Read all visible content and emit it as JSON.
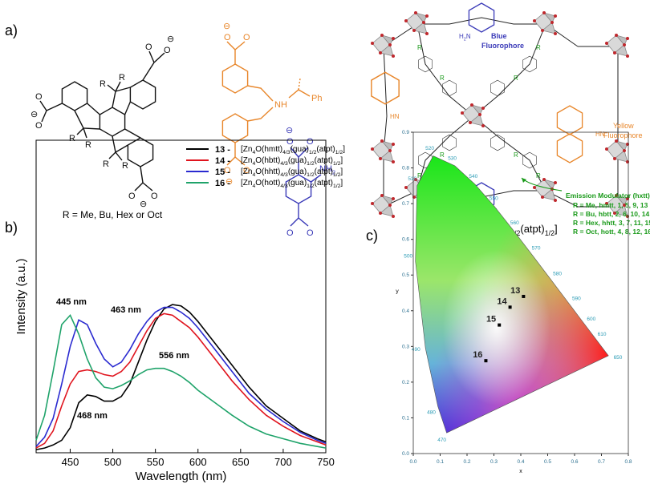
{
  "panels": {
    "a": "a)",
    "b": "b)",
    "c": "c)"
  },
  "atoms": {
    "R": "R",
    "O": "O",
    "minus": "⊖",
    "NH": "NH",
    "Ph": "Ph",
    "NH2": [
      "NH",
      "2"
    ],
    "H2N": [
      "H",
      "2",
      "N"
    ],
    "HN": "HN",
    "N": "N",
    "H": "H"
  },
  "structure_caption": "R = Me, Bu, Hex or Oct",
  "framework": {
    "blue_label": [
      "Blue",
      "Fluorophore"
    ],
    "yellow_label": [
      "Yellow",
      "Fluorophore"
    ],
    "modulator_title": "Emission Modulator (hxtt)",
    "modulator_lines": [
      "R = Me, hmtt, 1, 5, 9, 13",
      "R = Bu, hbtt, 2, 6, 10, 14",
      "R = Hex, hhtt, 3, 7, 11, 15",
      "R = Oct, hott, 4, 8, 12, 16"
    ],
    "formula": [
      "[Zn",
      "4",
      "O(hxtt)",
      "4/3",
      "(gua)",
      "1/2",
      "(atpt)",
      "1/2",
      "]"
    ]
  },
  "chart_data": [
    {
      "type": "line",
      "x_label": "Wavelength (nm)",
      "y_label": "Intensity (a.u.)",
      "x": [
        410,
        420,
        430,
        440,
        450,
        460,
        470,
        480,
        490,
        500,
        510,
        520,
        530,
        540,
        550,
        560,
        570,
        580,
        590,
        600,
        620,
        640,
        660,
        680,
        700,
        720,
        740,
        750
      ],
      "xlim": [
        410,
        750
      ],
      "xticks": [
        450,
        500,
        550,
        600,
        650,
        700,
        750
      ],
      "ylim": [
        0,
        100
      ],
      "series": [
        {
          "name": "13 -",
          "color": "#000000",
          "formula": [
            "[Zn",
            "4",
            "O(hmtt)",
            "4/3",
            "(gua)",
            "1/2",
            "(atpt)",
            "1/2",
            "]"
          ],
          "values": [
            1,
            1.5,
            2.5,
            4,
            8,
            16,
            18.5,
            18,
            16.5,
            16.5,
            18,
            22,
            29,
            36,
            42,
            46,
            47.4,
            47,
            45,
            42,
            35,
            28,
            21,
            15,
            11,
            7,
            4.5,
            3.5
          ]
        },
        {
          "name": "14 -",
          "color": "#e0141e",
          "formula": [
            "[Zn",
            "4",
            "O(hbtt)",
            "4/3",
            "(gua)",
            "1/2",
            "(atpt)",
            "1/2",
            "]"
          ],
          "values": [
            1.5,
            3,
            7,
            15,
            22,
            26,
            26.5,
            26,
            25,
            24.5,
            26,
            29,
            34,
            39,
            43,
            44.5,
            44,
            42,
            40,
            37,
            30,
            23,
            17,
            12,
            8.5,
            5.5,
            3.5,
            2.5
          ]
        },
        {
          "name": "15 -",
          "color": "#2a2ad0",
          "formula": [
            "[Zn",
            "4",
            "O(hhtt)",
            "4/3",
            "(gua)",
            "1/2",
            "(atpt)",
            "1/2",
            "]"
          ],
          "values": [
            2,
            5,
            11,
            22,
            34,
            42.5,
            41,
            35,
            30,
            27.5,
            29,
            33,
            38,
            42,
            45,
            46.5,
            46.5,
            45,
            43,
            40,
            33,
            26,
            19,
            14,
            10,
            6.5,
            4,
            3
          ]
        },
        {
          "name": "16 -",
          "color": "#1fa36a",
          "formula": [
            "[Zn",
            "4",
            "O(hott)",
            "4/3",
            "(gua)",
            "1/2",
            "(atpt)",
            "1/2",
            "]"
          ],
          "values": [
            4,
            12,
            26,
            41,
            44,
            38,
            30,
            24,
            21,
            20.5,
            21.5,
            23,
            25,
            26.5,
            27,
            27,
            26,
            24.5,
            22.5,
            20,
            16,
            12,
            8.5,
            6,
            4.5,
            3,
            2,
            1.5
          ]
        }
      ],
      "annotations": [
        "445 nm",
        "463 nm",
        "556 nm",
        "468 nm"
      ]
    },
    {
      "type": "scatter",
      "x_label": "x",
      "y_label": "y",
      "xlim": [
        0,
        0.8
      ],
      "ylim": [
        0,
        0.9
      ],
      "xticks": [
        {
          "value": 0,
          "label": "0.0"
        },
        0.1,
        0.2,
        0.3,
        0.4,
        0.5,
        0.6,
        0.7,
        0.8
      ],
      "yticks": [
        {
          "value": 0,
          "label": "0.0"
        },
        0.1,
        0.2,
        0.3,
        0.4,
        0.5,
        0.6,
        0.7,
        0.8,
        0.9
      ],
      "labels": [
        "13",
        "14",
        "15",
        "16"
      ],
      "x": [
        0.41,
        0.36,
        0.32,
        0.27
      ],
      "values": [
        0.44,
        0.41,
        0.36,
        0.26
      ],
      "color": "#000000",
      "locus": {
        "color": "#2a9bb5",
        "labels": [
          "470",
          "480",
          "490",
          "500",
          "510",
          "520",
          "530",
          "540",
          "550",
          "560",
          "570",
          "580",
          "590",
          "600",
          "610",
          "650"
        ],
        "x": [
          0.1241,
          0.0913,
          0.0454,
          0.0082,
          0.0139,
          0.0743,
          0.1547,
          0.2296,
          0.3016,
          0.3731,
          0.4441,
          0.5125,
          0.5752,
          0.627,
          0.6658,
          0.726
        ],
        "y": [
          0.0578,
          0.1327,
          0.295,
          0.5384,
          0.7502,
          0.8338,
          0.8059,
          0.7543,
          0.6923,
          0.6245,
          0.5547,
          0.4866,
          0.4242,
          0.3725,
          0.334,
          0.274
        ]
      }
    }
  ]
}
